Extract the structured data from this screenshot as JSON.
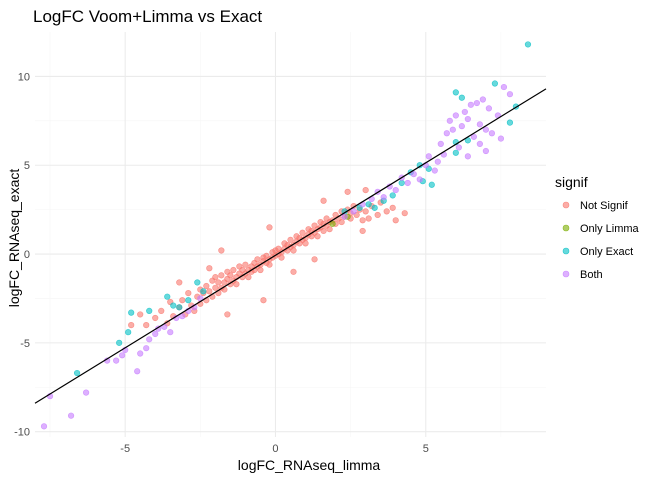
{
  "chart_data": {
    "type": "scatter",
    "title": "LogFC Voom+Limma vs Exact",
    "xlabel": "logFC_RNAseq_limma",
    "ylabel": "logFC_RNAseq_exact",
    "xlim": [
      -8.0,
      9.0
    ],
    "ylim": [
      -10.3,
      12.5
    ],
    "x_ticks": [
      -5,
      0,
      5
    ],
    "y_ticks": [
      -10,
      -5,
      0,
      5,
      10
    ],
    "grid": true,
    "legend": {
      "title": "signif",
      "position": "right",
      "entries": [
        {
          "label": "Not Signif",
          "color": "#F8766D"
        },
        {
          "label": "Only Limma",
          "color": "#7CAE00"
        },
        {
          "label": "Only Exact",
          "color": "#00BFC4"
        },
        {
          "label": "Both",
          "color": "#C77CFF"
        }
      ]
    },
    "reference_line": {
      "type": "identity",
      "x": [
        -8.0,
        9.0
      ],
      "y": [
        -8.4,
        9.3
      ],
      "color": "#000000"
    },
    "series": [
      {
        "name": "Not Signif",
        "color": "#F8766D",
        "points": [
          [
            -4.8,
            -4.0
          ],
          [
            -4.5,
            -3.4
          ],
          [
            -4.3,
            -4.0
          ],
          [
            -4.0,
            -3.6
          ],
          [
            -3.8,
            -3.2
          ],
          [
            -3.6,
            -3.9
          ],
          [
            -3.5,
            -2.7
          ],
          [
            -3.4,
            -3.5
          ],
          [
            -3.2,
            -3.0
          ],
          [
            -3.1,
            -2.6
          ],
          [
            -3.0,
            -3.4
          ],
          [
            -2.9,
            -2.2
          ],
          [
            -2.8,
            -2.9
          ],
          [
            -2.7,
            -3.2
          ],
          [
            -2.6,
            -2.4
          ],
          [
            -2.5,
            -2.0
          ],
          [
            -2.5,
            -2.8
          ],
          [
            -2.4,
            -2.2
          ],
          [
            -2.3,
            -1.8
          ],
          [
            -2.3,
            -2.6
          ],
          [
            -2.2,
            -2.1
          ],
          [
            -2.1,
            -1.5
          ],
          [
            -2.1,
            -2.4
          ],
          [
            -2.0,
            -1.9
          ],
          [
            -2.0,
            -1.3
          ],
          [
            -1.9,
            -2.2
          ],
          [
            -1.9,
            -1.6
          ],
          [
            -1.8,
            -1.9
          ],
          [
            -1.8,
            -1.2
          ],
          [
            -1.7,
            -1.6
          ],
          [
            -1.7,
            -2.0
          ],
          [
            -1.6,
            -1.4
          ],
          [
            -1.6,
            -1.0
          ],
          [
            -1.5,
            -1.7
          ],
          [
            -1.5,
            -1.2
          ],
          [
            -1.4,
            -1.5
          ],
          [
            -1.4,
            -0.9
          ],
          [
            -1.3,
            -1.3
          ],
          [
            -1.3,
            -1.7
          ],
          [
            -1.2,
            -1.1
          ],
          [
            -1.2,
            -0.7
          ],
          [
            -1.1,
            -1.3
          ],
          [
            -1.1,
            -0.9
          ],
          [
            -1.0,
            -1.1
          ],
          [
            -1.0,
            -0.6
          ],
          [
            -0.9,
            -0.9
          ],
          [
            -0.9,
            -1.3
          ],
          [
            -0.8,
            -0.7
          ],
          [
            -0.8,
            -1.0
          ],
          [
            -0.7,
            -0.5
          ],
          [
            -0.7,
            -0.9
          ],
          [
            -0.6,
            -0.7
          ],
          [
            -0.6,
            -0.3
          ],
          [
            -0.5,
            -0.6
          ],
          [
            -0.5,
            -0.9
          ],
          [
            -0.4,
            -0.4
          ],
          [
            -0.4,
            -0.2
          ],
          [
            -0.3,
            -0.5
          ],
          [
            -0.3,
            -0.1
          ],
          [
            -0.2,
            -0.3
          ],
          [
            -0.2,
            -0.6
          ],
          [
            -0.1,
            -0.2
          ],
          [
            -0.1,
            0.1
          ],
          [
            0.0,
            -0.1
          ],
          [
            0.0,
            0.2
          ],
          [
            0.1,
            0.0
          ],
          [
            0.1,
            0.3
          ],
          [
            0.2,
            0.1
          ],
          [
            0.2,
            -0.2
          ],
          [
            0.3,
            0.3
          ],
          [
            0.3,
            0.6
          ],
          [
            0.4,
            0.2
          ],
          [
            0.4,
            0.5
          ],
          [
            0.5,
            0.4
          ],
          [
            0.5,
            0.8
          ],
          [
            0.6,
            0.5
          ],
          [
            0.6,
            0.2
          ],
          [
            0.7,
            0.7
          ],
          [
            0.7,
            1.0
          ],
          [
            0.8,
            0.6
          ],
          [
            0.8,
            0.9
          ],
          [
            0.9,
            0.8
          ],
          [
            0.9,
            1.2
          ],
          [
            1.0,
            0.9
          ],
          [
            1.0,
            0.6
          ],
          [
            1.1,
            1.1
          ],
          [
            1.1,
            1.4
          ],
          [
            1.2,
            1.0
          ],
          [
            1.2,
            1.3
          ],
          [
            1.3,
            1.2
          ],
          [
            1.3,
            1.6
          ],
          [
            1.4,
            1.4
          ],
          [
            1.4,
            1.0
          ],
          [
            1.5,
            1.5
          ],
          [
            1.5,
            1.8
          ],
          [
            1.6,
            1.3
          ],
          [
            1.6,
            1.7
          ],
          [
            1.7,
            1.6
          ],
          [
            1.7,
            2.0
          ],
          [
            1.8,
            1.8
          ],
          [
            1.8,
            1.4
          ],
          [
            1.9,
            1.9
          ],
          [
            2.0,
            2.2
          ],
          [
            2.0,
            1.7
          ],
          [
            2.1,
            2.0
          ],
          [
            2.2,
            2.4
          ],
          [
            2.2,
            1.8
          ],
          [
            2.3,
            2.1
          ],
          [
            2.4,
            2.5
          ],
          [
            2.5,
            2.0
          ],
          [
            2.5,
            2.3
          ],
          [
            2.6,
            2.7
          ],
          [
            2.7,
            2.2
          ],
          [
            2.8,
            2.5
          ],
          [
            2.9,
            1.9
          ],
          [
            3.0,
            2.4
          ],
          [
            3.1,
            2.0
          ],
          [
            3.2,
            2.7
          ],
          [
            3.4,
            2.2
          ],
          [
            3.5,
            2.9
          ],
          [
            3.7,
            2.4
          ],
          [
            3.9,
            2.6
          ],
          [
            4.0,
            1.9
          ],
          [
            4.3,
            2.3
          ],
          [
            2.4,
            3.5
          ],
          [
            3.0,
            3.6
          ],
          [
            -0.4,
            -2.6
          ],
          [
            -1.6,
            -3.4
          ],
          [
            1.6,
            3.0
          ],
          [
            -1.8,
            0.2
          ],
          [
            -2.2,
            -0.8
          ],
          [
            1.3,
            -0.3
          ],
          [
            0.6,
            -1.0
          ],
          [
            -0.2,
            1.5
          ],
          [
            2.9,
            1.3
          ],
          [
            -3.2,
            -1.6
          ]
        ]
      },
      {
        "name": "Only Limma",
        "color": "#7CAE00",
        "points": [
          [
            1.9,
            1.7
          ],
          [
            2.4,
            2.1
          ]
        ]
      },
      {
        "name": "Only Exact",
        "color": "#00BFC4",
        "points": [
          [
            -6.6,
            -6.7
          ],
          [
            -5.2,
            -5.0
          ],
          [
            -4.9,
            -4.4
          ],
          [
            -4.8,
            -3.3
          ],
          [
            -4.2,
            -3.2
          ],
          [
            -3.6,
            -2.4
          ],
          [
            -3.4,
            -2.9
          ],
          [
            -3.2,
            -3.0
          ],
          [
            -2.9,
            -2.6
          ],
          [
            -2.6,
            -1.6
          ],
          [
            -2.4,
            -2.1
          ],
          [
            2.3,
            2.4
          ],
          [
            2.8,
            2.6
          ],
          [
            3.1,
            2.8
          ],
          [
            3.3,
            2.6
          ],
          [
            3.6,
            3.0
          ],
          [
            3.9,
            3.3
          ],
          [
            4.2,
            4.0
          ],
          [
            4.5,
            4.6
          ],
          [
            4.8,
            5.0
          ],
          [
            5.1,
            4.8
          ],
          [
            4.9,
            4.1
          ],
          [
            5.2,
            3.9
          ],
          [
            6.0,
            5.7
          ],
          [
            6.4,
            6.4
          ],
          [
            6.0,
            6.3
          ],
          [
            6.2,
            8.8
          ],
          [
            6.0,
            9.1
          ],
          [
            7.3,
            9.6
          ],
          [
            7.8,
            7.4
          ],
          [
            8.0,
            8.3
          ],
          [
            8.4,
            11.8
          ]
        ]
      },
      {
        "name": "Both",
        "color": "#C77CFF",
        "points": [
          [
            -7.7,
            -9.7
          ],
          [
            -7.5,
            -8.0
          ],
          [
            -6.8,
            -9.1
          ],
          [
            -6.3,
            -7.8
          ],
          [
            -5.6,
            -6.0
          ],
          [
            -5.3,
            -6.0
          ],
          [
            -5.1,
            -5.7
          ],
          [
            -5.0,
            -5.4
          ],
          [
            -4.6,
            -6.6
          ],
          [
            -4.5,
            -5.6
          ],
          [
            -4.3,
            -5.3
          ],
          [
            -4.2,
            -4.8
          ],
          [
            -4.0,
            -4.5
          ],
          [
            -3.9,
            -4.2
          ],
          [
            -3.7,
            -4.1
          ],
          [
            -3.5,
            -4.4
          ],
          [
            -3.3,
            -3.6
          ],
          [
            -3.1,
            -3.5
          ],
          [
            -2.9,
            -3.2
          ],
          [
            -2.7,
            -3.0
          ],
          [
            -2.5,
            -2.5
          ],
          [
            2.3,
            2.1
          ],
          [
            2.6,
            2.4
          ],
          [
            2.9,
            2.8
          ],
          [
            3.2,
            3.1
          ],
          [
            3.4,
            3.5
          ],
          [
            3.6,
            3.2
          ],
          [
            3.8,
            3.8
          ],
          [
            4.0,
            3.6
          ],
          [
            4.2,
            4.3
          ],
          [
            4.4,
            4.0
          ],
          [
            4.6,
            4.5
          ],
          [
            4.8,
            4.2
          ],
          [
            5.0,
            5.0
          ],
          [
            5.1,
            5.5
          ],
          [
            5.3,
            4.7
          ],
          [
            5.4,
            5.2
          ],
          [
            5.5,
            6.2
          ],
          [
            5.6,
            5.6
          ],
          [
            5.7,
            6.8
          ],
          [
            5.8,
            7.5
          ],
          [
            5.9,
            7.0
          ],
          [
            6.0,
            7.8
          ],
          [
            6.1,
            6.0
          ],
          [
            6.2,
            7.2
          ],
          [
            6.3,
            8.0
          ],
          [
            6.4,
            7.6
          ],
          [
            6.5,
            8.4
          ],
          [
            6.6,
            6.6
          ],
          [
            6.7,
            8.5
          ],
          [
            6.8,
            7.3
          ],
          [
            6.9,
            8.7
          ],
          [
            7.0,
            7.0
          ],
          [
            7.1,
            8.2
          ],
          [
            7.2,
            6.8
          ],
          [
            7.4,
            7.8
          ],
          [
            7.6,
            9.4
          ],
          [
            7.8,
            9.0
          ],
          [
            6.4,
            5.5
          ],
          [
            6.8,
            6.2
          ],
          [
            7.0,
            5.8
          ],
          [
            7.5,
            6.5
          ]
        ]
      }
    ]
  }
}
